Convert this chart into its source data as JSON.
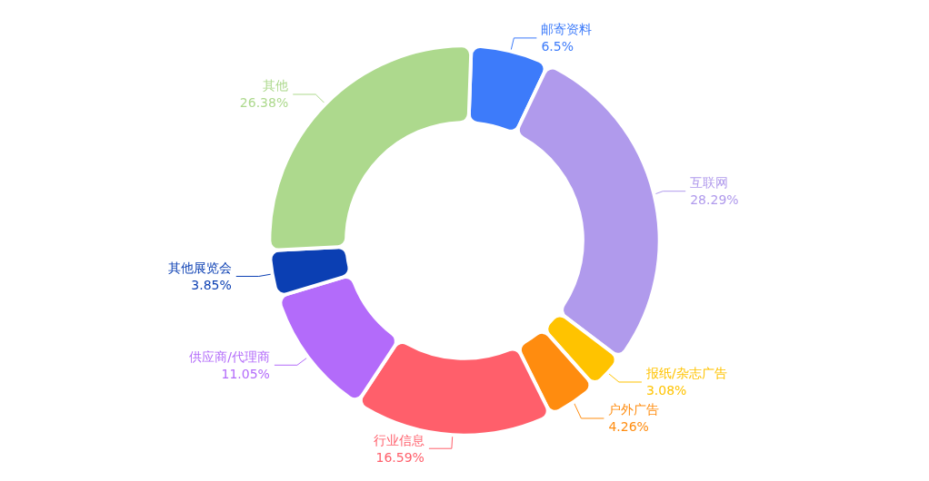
{
  "chart_data": {
    "type": "donut",
    "categories": [
      "邮寄资料",
      "互联网",
      "报纸/杂志广告",
      "户外广告",
      "行业信息",
      "供应商/代理商",
      "其他展览会",
      "其他"
    ],
    "values": [
      6.5,
      28.29,
      3.08,
      4.26,
      16.59,
      11.05,
      3.85,
      26.38
    ],
    "value_labels": [
      "6.5%",
      "28.29%",
      "3.08%",
      "4.26%",
      "16.59%",
      "11.05%",
      "3.85%",
      "26.38%"
    ],
    "colors": [
      "#3d7bfa",
      "#b09aec",
      "#ffc300",
      "#ff8c0f",
      "#ff5f6b",
      "#b36bfa",
      "#0b3fb3",
      "#add98d"
    ],
    "legend": false
  }
}
